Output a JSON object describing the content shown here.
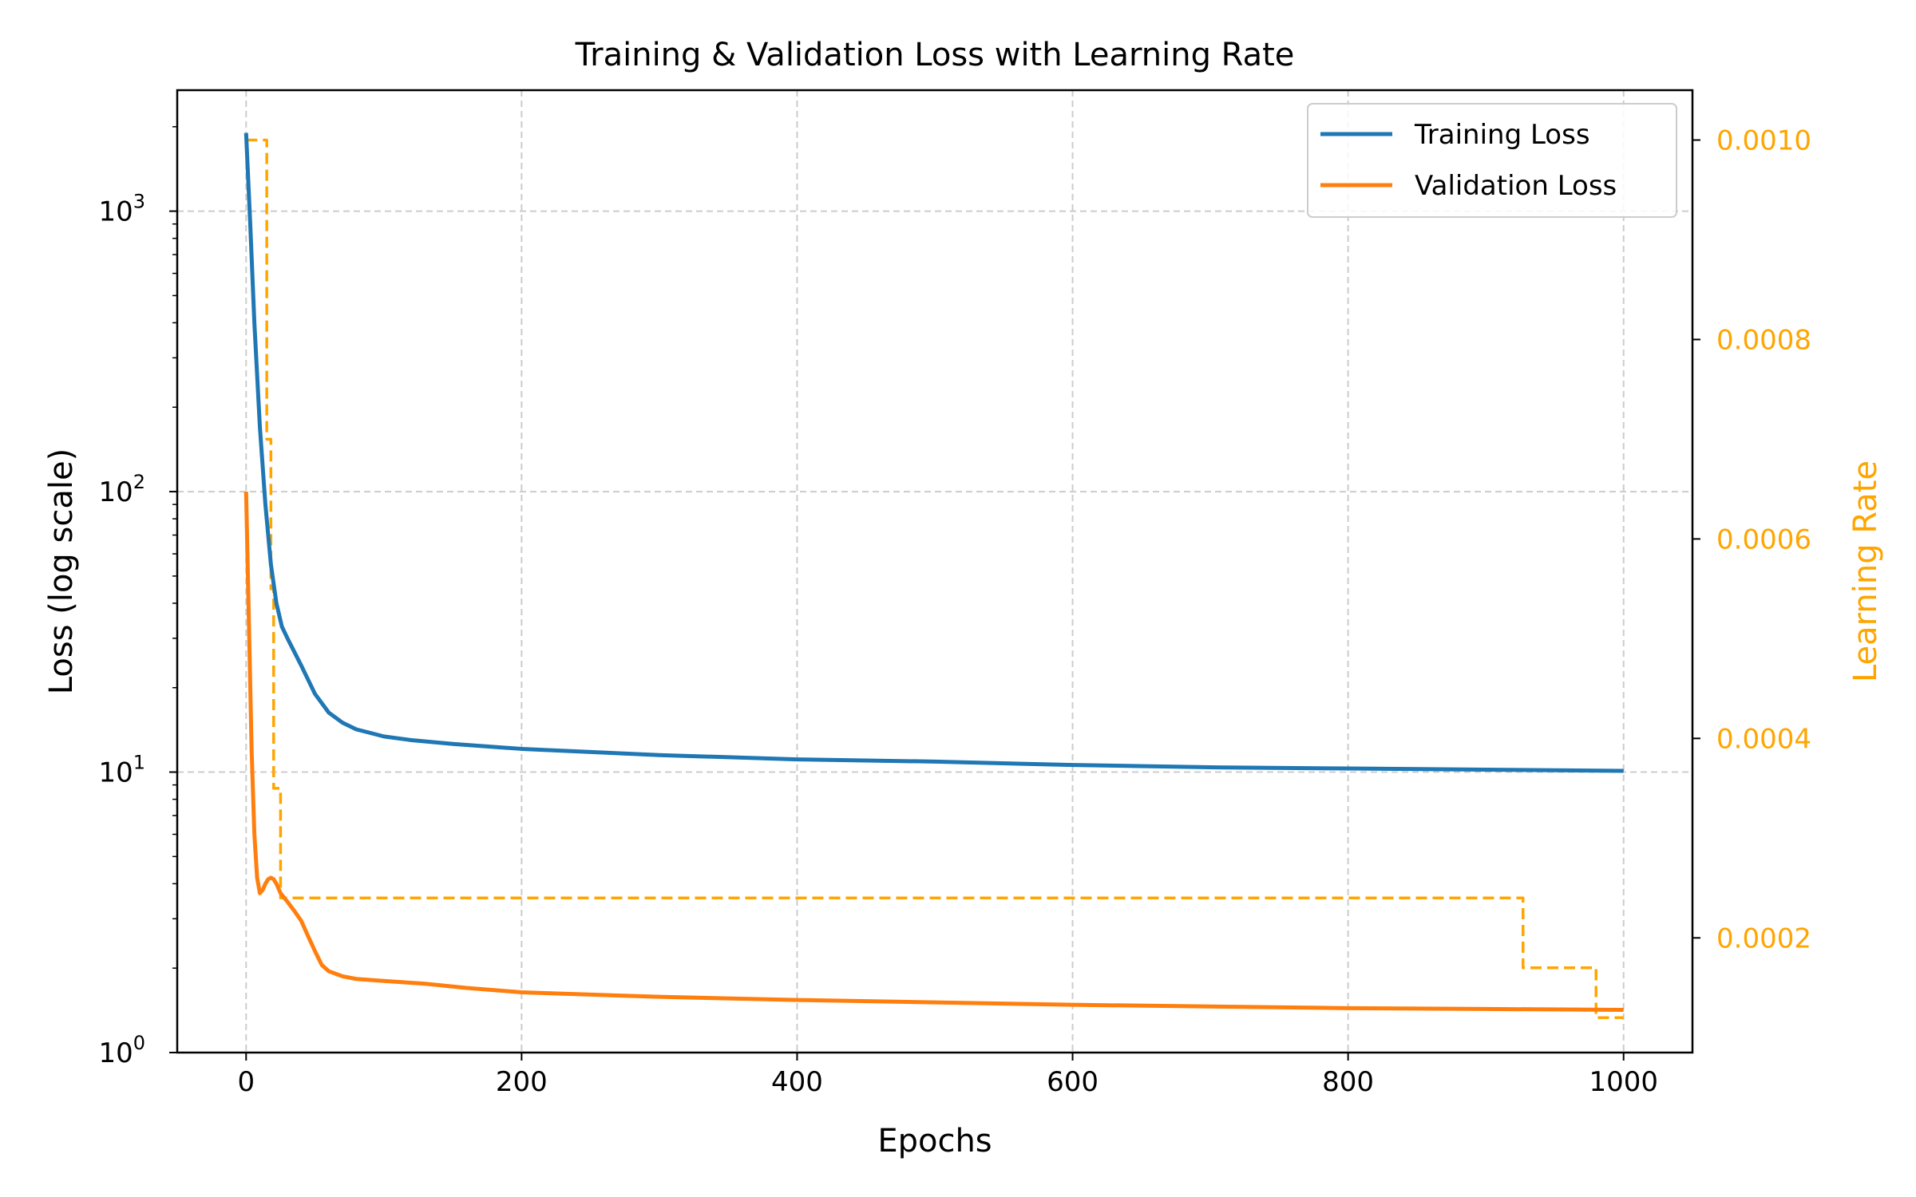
{
  "chart_data": {
    "type": "line",
    "title": "Training & Validation Loss with Learning Rate",
    "xlabel": "Epochs",
    "ylabel": "Loss (log scale)",
    "y2label": "Learning Rate",
    "xlim": [
      -50,
      1050
    ],
    "ylim": [
      1,
      2700
    ],
    "yscale": "log",
    "y2lim": [
      8.5e-05,
      0.00105
    ],
    "x_ticks": [
      0,
      200,
      400,
      600,
      800,
      1000
    ],
    "x_tick_labels": [
      "0",
      "200",
      "400",
      "600",
      "800",
      "1000"
    ],
    "y_ticks": [
      1,
      10,
      100,
      1000
    ],
    "y_tick_labels": [
      {
        "base": "10",
        "exp": "0"
      },
      {
        "base": "10",
        "exp": "1"
      },
      {
        "base": "10",
        "exp": "2"
      },
      {
        "base": "10",
        "exp": "3"
      }
    ],
    "y2_ticks": [
      0.0002,
      0.0004,
      0.0006,
      0.0008,
      0.001
    ],
    "y2_tick_labels": [
      "0.0002",
      "0.0004",
      "0.0006",
      "0.0008",
      "0.0010"
    ],
    "grid": true,
    "legend_position": "top-right",
    "colors": {
      "training": "#1f77b4",
      "validation": "#ff7f0e",
      "lr": "#ffa500",
      "axis": "#000000",
      "grid": "#cccccc"
    },
    "series": [
      {
        "name": "Training Loss",
        "axis": "left",
        "x": [
          0,
          3,
          6,
          10,
          14,
          18,
          22,
          26,
          30,
          40,
          50,
          60,
          70,
          80,
          90,
          100,
          120,
          150,
          200,
          300,
          400,
          500,
          600,
          700,
          800,
          900,
          1000
        ],
        "y": [
          1900,
          900,
          400,
          170,
          90,
          55,
          40,
          33,
          30,
          24,
          19,
          16.3,
          15,
          14.2,
          13.8,
          13.4,
          13,
          12.6,
          12.1,
          11.5,
          11.1,
          10.9,
          10.6,
          10.4,
          10.3,
          10.2,
          10.1
        ]
      },
      {
        "name": "Validation Loss",
        "axis": "left",
        "x": [
          0,
          2,
          4,
          6,
          8,
          10,
          12,
          14,
          16,
          18,
          20,
          22,
          25,
          30,
          35,
          40,
          45,
          50,
          55,
          60,
          70,
          80,
          100,
          130,
          160,
          200,
          300,
          400,
          500,
          600,
          700,
          800,
          900,
          1000
        ],
        "y": [
          100,
          35,
          12,
          6,
          4.2,
          3.7,
          3.8,
          4.0,
          4.15,
          4.2,
          4.15,
          4.0,
          3.7,
          3.45,
          3.2,
          2.95,
          2.6,
          2.3,
          2.05,
          1.95,
          1.87,
          1.83,
          1.8,
          1.76,
          1.7,
          1.64,
          1.58,
          1.54,
          1.51,
          1.48,
          1.46,
          1.44,
          1.43,
          1.42
        ]
      },
      {
        "name": "Learning Rate",
        "axis": "right",
        "style": "dashed-step",
        "x": [
          0,
          15,
          15,
          18,
          18,
          20,
          20,
          25,
          25,
          28,
          28,
          927,
          927,
          980,
          980,
          1000
        ],
        "y": [
          0.001,
          0.001,
          0.0007,
          0.0007,
          0.00055,
          0.00055,
          0.00035,
          0.00035,
          0.00024,
          0.00024,
          0.00024,
          0.00024,
          0.00017,
          0.00017,
          0.00012,
          0.00012
        ]
      }
    ]
  }
}
